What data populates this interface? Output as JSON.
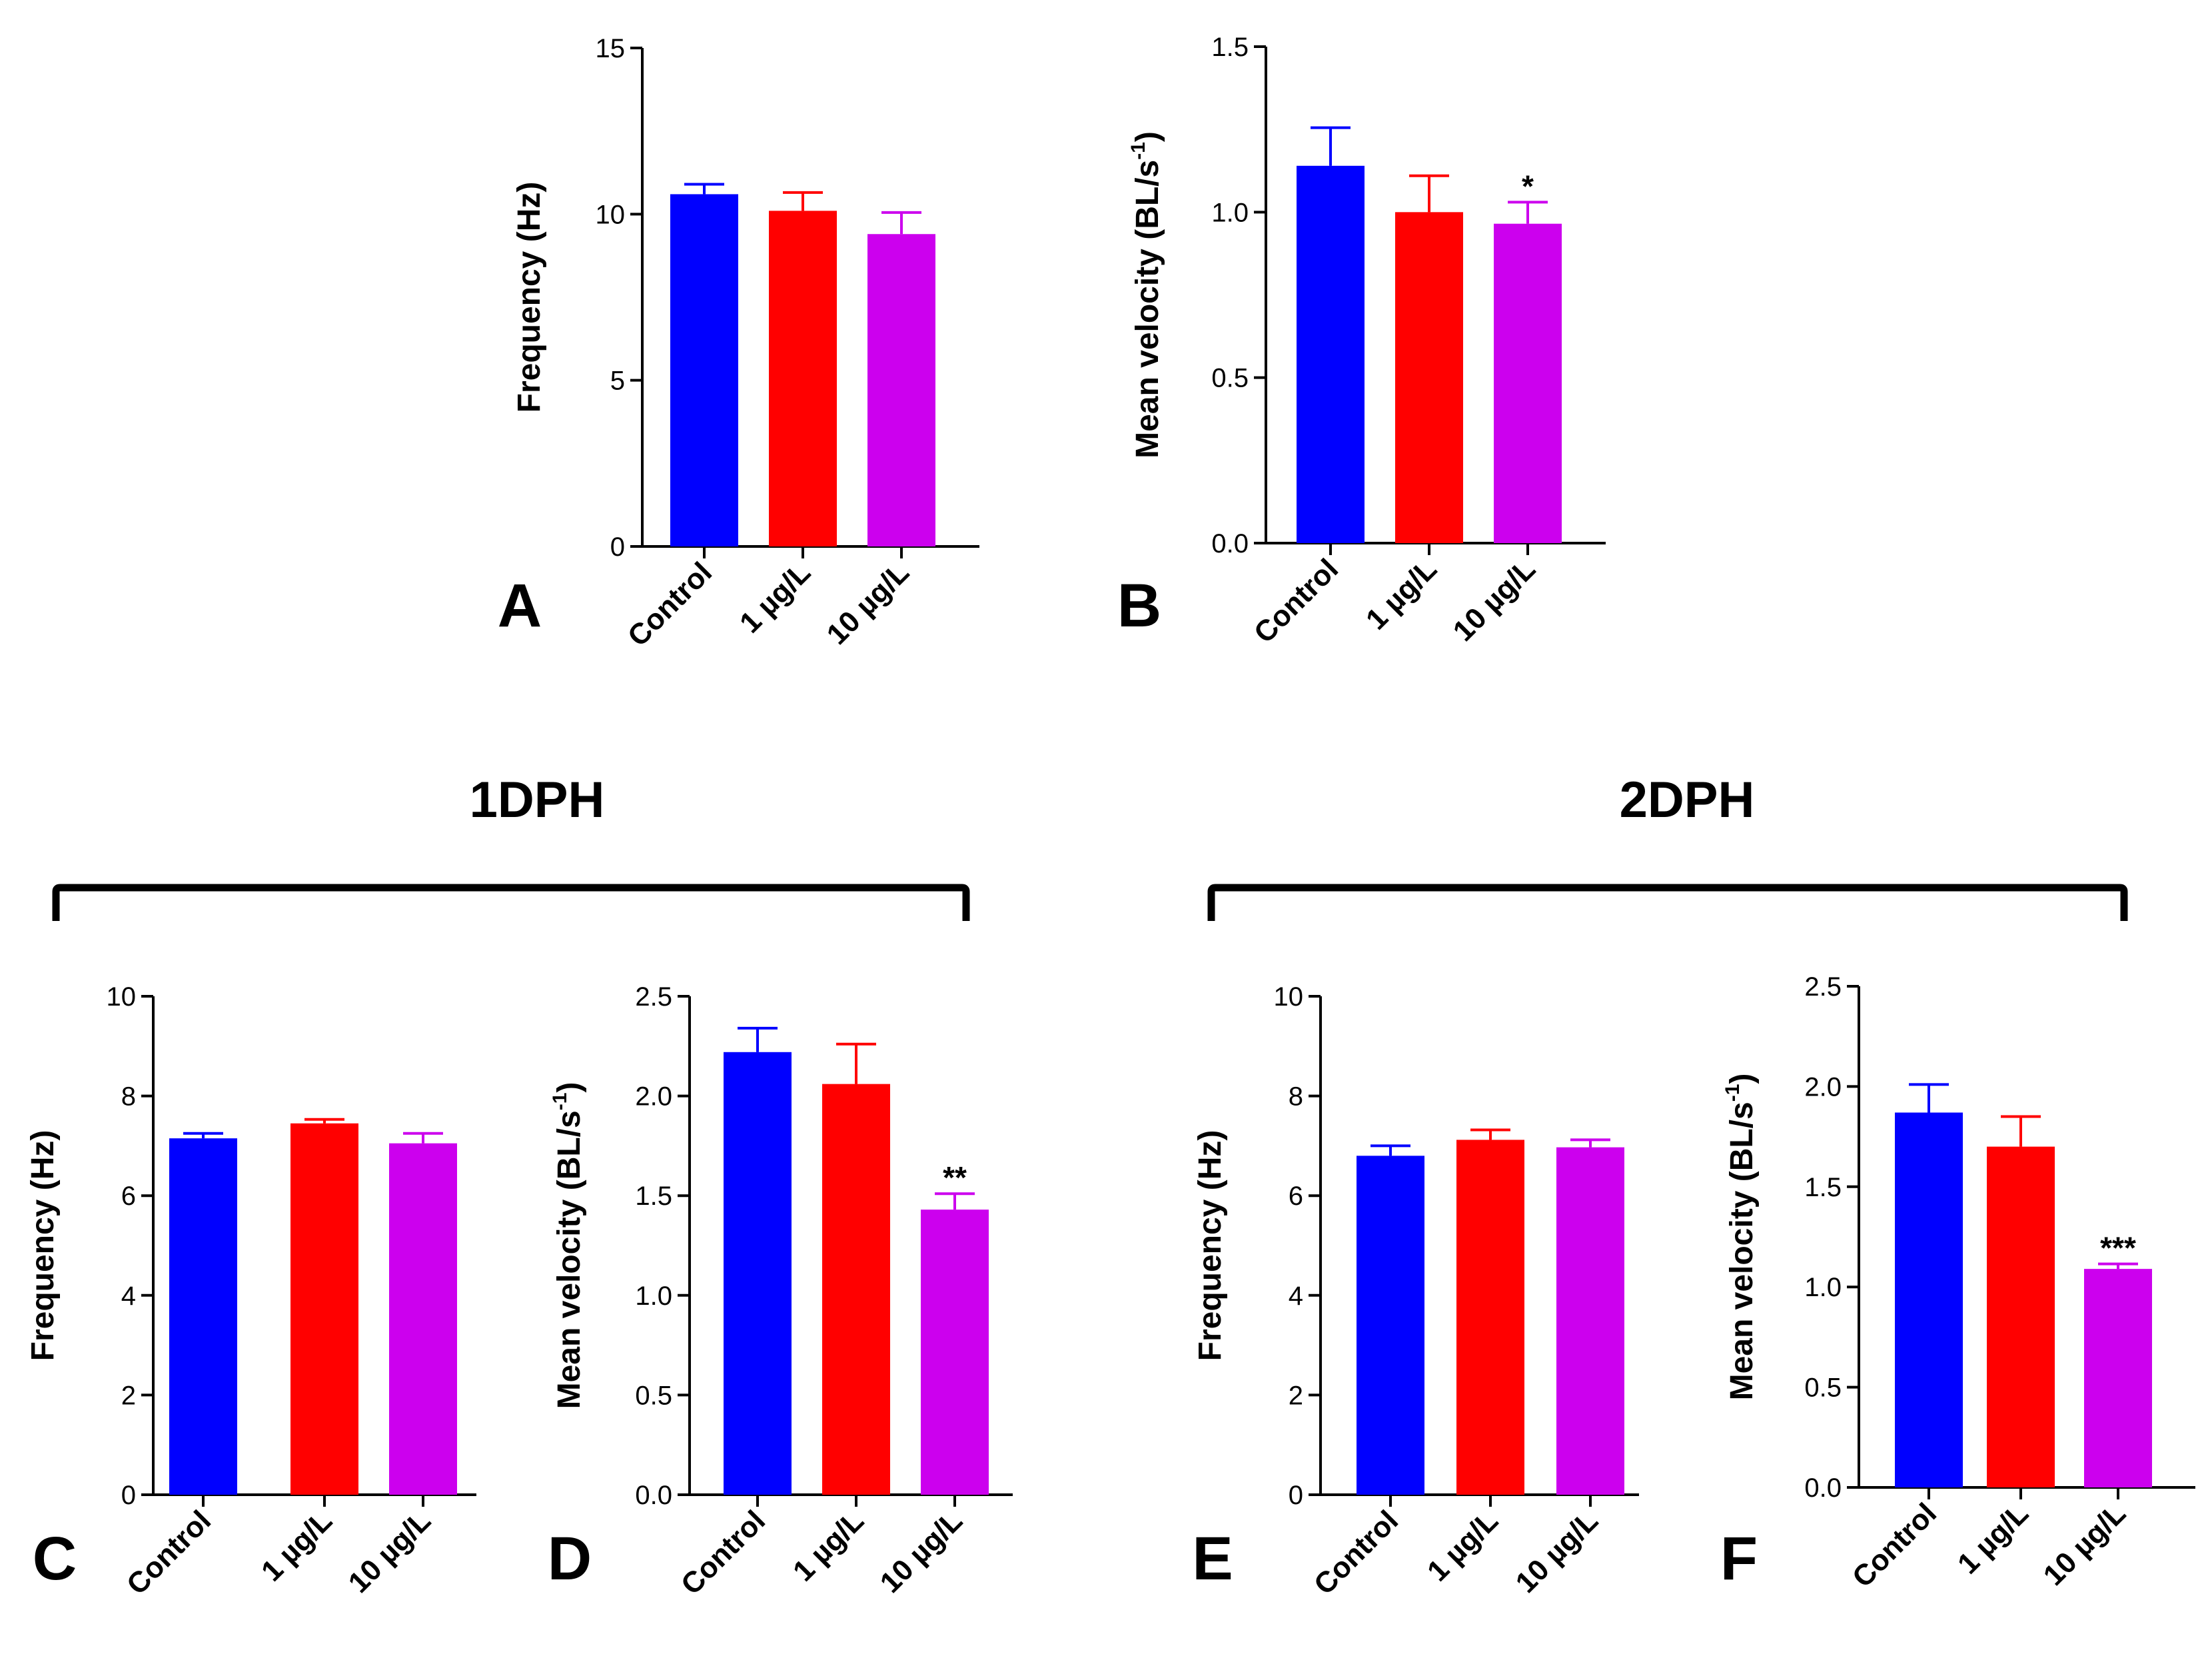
{
  "colors": {
    "control": "#0000ff",
    "low": "#ff0000",
    "high": "#cc00ee",
    "axis": "#000000"
  },
  "groups": [
    {
      "id": "1dph",
      "label": "1DPH"
    },
    {
      "id": "2dph",
      "label": "2DPH"
    }
  ],
  "chart_data": [
    {
      "panel": "A",
      "type": "bar",
      "categories": [
        "Control",
        "1 µg/L",
        "10 µg/L"
      ],
      "values": [
        10.6,
        10.1,
        9.4
      ],
      "errors": [
        0.3,
        0.55,
        0.65
      ],
      "significance": [
        "",
        "",
        ""
      ],
      "ylabel": "Frequency (Hz)",
      "ylabel_sup": "",
      "ylim": [
        0,
        15
      ],
      "yticks": [
        0,
        5,
        10,
        15
      ],
      "tick_decimals": 0
    },
    {
      "panel": "B",
      "type": "bar",
      "categories": [
        "Control",
        "1 µg/L",
        "10 µg/L"
      ],
      "values": [
        1.14,
        1.0,
        0.965
      ],
      "errors": [
        0.115,
        0.11,
        0.065
      ],
      "significance": [
        "",
        "",
        "*"
      ],
      "ylabel": "Mean velocity (BL/s",
      "ylabel_sup": "-1",
      "ylim": [
        0,
        1.5
      ],
      "yticks": [
        0,
        0.5,
        1.0,
        1.5
      ],
      "tick_decimals": 1
    },
    {
      "panel": "C",
      "type": "bar",
      "group": "1DPH",
      "categories": [
        "Control",
        "1 µg/L",
        "10 µg/L"
      ],
      "values": [
        7.15,
        7.45,
        7.05
      ],
      "errors": [
        0.1,
        0.08,
        0.2
      ],
      "significance": [
        "",
        "",
        ""
      ],
      "ylabel": "Frequency (Hz)",
      "ylabel_sup": "",
      "ylim": [
        0,
        10
      ],
      "yticks": [
        0,
        2,
        4,
        6,
        8,
        10
      ],
      "tick_decimals": 0
    },
    {
      "panel": "D",
      "type": "bar",
      "group": "1DPH",
      "categories": [
        "Control",
        "1 µg/L",
        "10 µg/L"
      ],
      "values": [
        2.22,
        2.06,
        1.43
      ],
      "errors": [
        0.12,
        0.2,
        0.08
      ],
      "significance": [
        "",
        "",
        "**"
      ],
      "ylabel": "Mean velocity (BL/s",
      "ylabel_sup": "-1",
      "ylim": [
        0,
        2.5
      ],
      "yticks": [
        0,
        0.5,
        1.0,
        1.5,
        2.0,
        2.5
      ],
      "tick_decimals": 1
    },
    {
      "panel": "E",
      "type": "bar",
      "group": "2DPH",
      "categories": [
        "Control",
        "1 µg/L",
        "10 µg/L"
      ],
      "values": [
        6.8,
        7.12,
        6.97
      ],
      "errors": [
        0.2,
        0.2,
        0.15
      ],
      "significance": [
        "",
        "",
        ""
      ],
      "ylabel": "Frequency (Hz)",
      "ylabel_sup": "",
      "ylim": [
        0,
        10
      ],
      "yticks": [
        0,
        2,
        4,
        6,
        8,
        10
      ],
      "tick_decimals": 0
    },
    {
      "panel": "F",
      "type": "bar",
      "group": "2DPH",
      "categories": [
        "Control",
        "1 µg/L",
        "10 µg/L"
      ],
      "values": [
        1.87,
        1.7,
        1.09
      ],
      "errors": [
        0.14,
        0.15,
        0.025
      ],
      "significance": [
        "",
        "",
        "***"
      ],
      "ylabel": "Mean velocity (BL/s",
      "ylabel_sup": "-1",
      "ylim": [
        0,
        2.5
      ],
      "yticks": [
        0,
        0.5,
        1.0,
        1.5,
        2.0,
        2.5
      ],
      "tick_decimals": 1
    }
  ]
}
